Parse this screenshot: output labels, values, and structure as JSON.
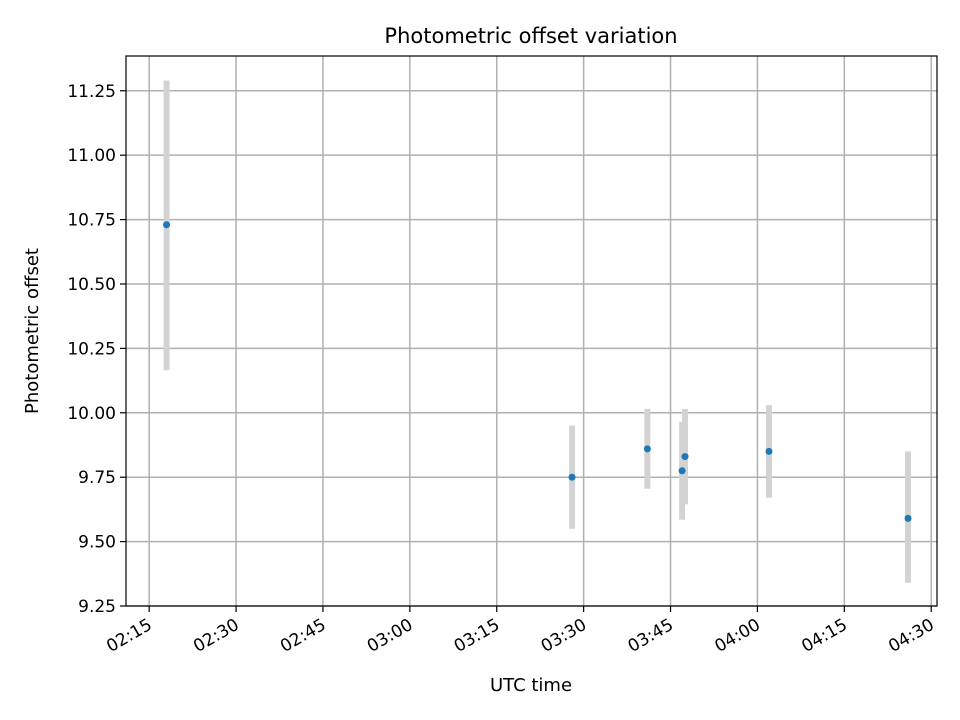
{
  "chart_data": {
    "type": "scatter",
    "title": "Photometric offset variation",
    "xlabel": "UTC time",
    "ylabel": "Photometric offset",
    "x_unit": "UTC HH:MM",
    "xlim": [
      "02:11",
      "04:31"
    ],
    "ylim": [
      9.25,
      11.385
    ],
    "x_ticks": [
      "02:15",
      "02:30",
      "02:45",
      "03:00",
      "03:15",
      "03:30",
      "03:45",
      "04:00",
      "04:15",
      "04:30"
    ],
    "y_ticks": [
      "9.25",
      "9.50",
      "9.75",
      "10.00",
      "10.25",
      "10.50",
      "10.75",
      "11.00",
      "11.25"
    ],
    "grid": true,
    "point_color": "#1f77b4",
    "errorbar_color": "#d3d3d3",
    "points": [
      {
        "x": "02:18",
        "y": 10.73,
        "y_low": 10.165,
        "y_high": 11.29
      },
      {
        "x": "03:28",
        "y": 9.75,
        "y_low": 9.55,
        "y_high": 9.95
      },
      {
        "x": "03:41",
        "y": 9.86,
        "y_low": 9.705,
        "y_high": 10.015
      },
      {
        "x": "03:47",
        "y": 9.775,
        "y_low": 9.585,
        "y_high": 9.965
      },
      {
        "x": "03:47.5",
        "y": 9.83,
        "y_low": 9.645,
        "y_high": 10.015
      },
      {
        "x": "04:02",
        "y": 9.85,
        "y_low": 9.67,
        "y_high": 10.03
      },
      {
        "x": "04:26",
        "y": 9.59,
        "y_low": 9.34,
        "y_high": 9.85
      }
    ]
  }
}
